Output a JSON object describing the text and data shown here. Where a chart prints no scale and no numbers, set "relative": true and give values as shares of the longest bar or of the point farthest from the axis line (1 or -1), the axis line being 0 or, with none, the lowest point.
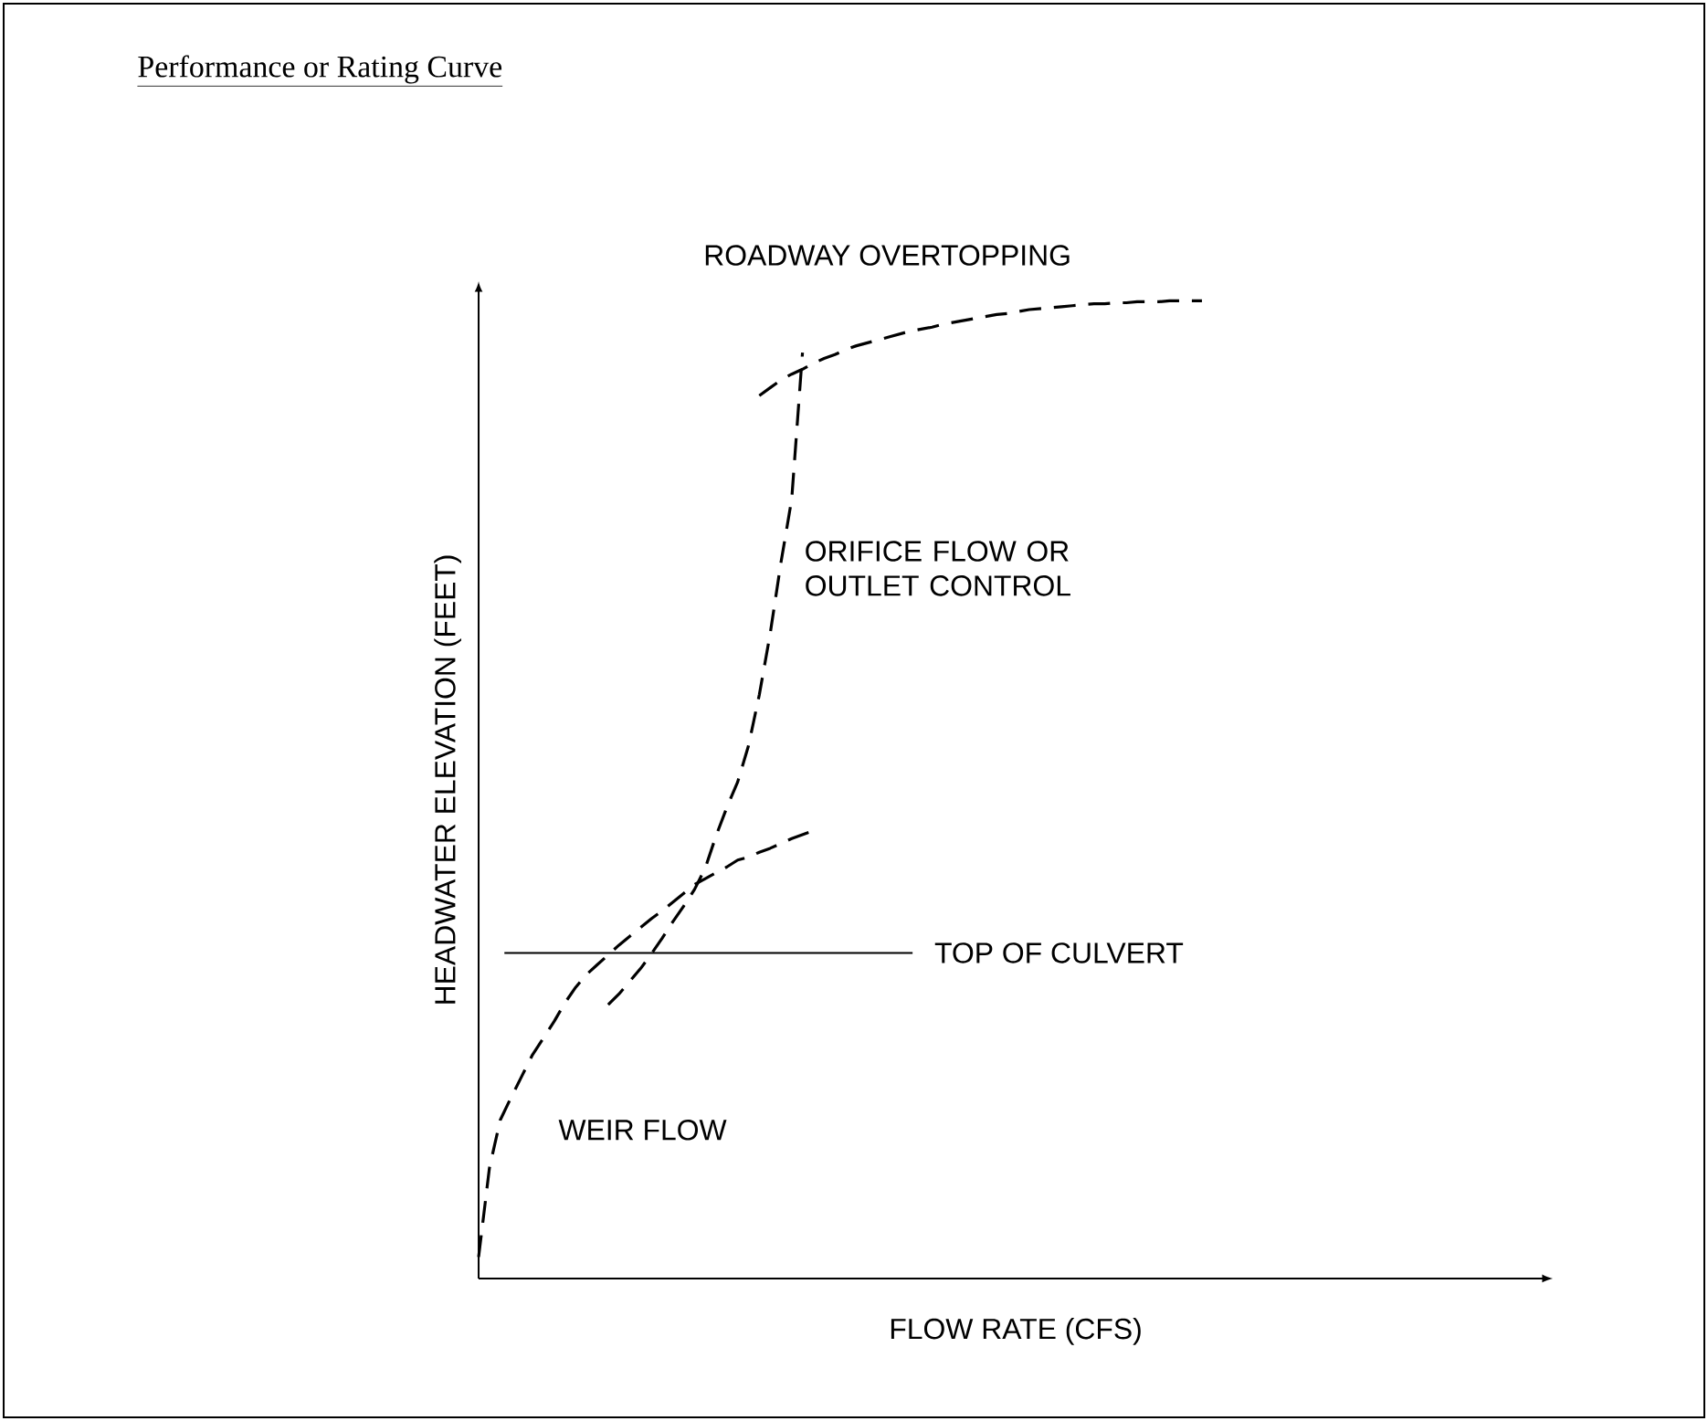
{
  "chart_data": {
    "type": "line",
    "title": "Performance or Rating Curve",
    "xlabel": "FLOW RATE (CFS)",
    "ylabel": "HEADWATER ELEVATION (FEET)",
    "relative": true,
    "line_style": "dashed",
    "marker": "none",
    "categories": [
      null,
      null,
      null,
      null,
      null,
      null,
      null,
      null,
      null,
      null,
      null,
      null,
      null,
      null,
      null,
      null,
      null,
      null,
      null,
      null,
      null,
      null,
      null,
      null,
      null,
      null,
      null,
      null,
      null,
      null,
      null,
      null,
      null,
      null,
      null,
      null,
      null,
      null,
      null,
      null,
      null,
      null,
      null,
      null,
      null,
      null,
      null,
      null,
      null,
      null,
      null,
      null,
      null,
      null,
      null,
      null,
      null,
      null,
      null,
      null,
      null,
      null,
      null,
      null,
      null,
      null,
      null,
      null
    ],
    "series": [
      {
        "name": "ROADWAY OVERTOPPING",
        "color": "#000000",
        "values": [
          null,
          null,
          null,
          null,
          null,
          null,
          null,
          null,
          null,
          null,
          null,
          null,
          null,
          null,
          null,
          null,
          null,
          null,
          null,
          null,
          null,
          null,
          null,
          null,
          null,
          null,
          0.903,
          0.911,
          0.919,
          0.925,
          0.93,
          0.936,
          0.941,
          0.945,
          0.95,
          0.954,
          0.957,
          0.96,
          0.963,
          0.966,
          0.969,
          0.971,
          0.973,
          0.976,
          0.978,
          0.98,
          0.982,
          0.984,
          0.986,
          0.987,
          0.989,
          0.991,
          0.992,
          0.993,
          0.994,
          0.995,
          0.996,
          0.997,
          0.997,
          0.998,
          0.998,
          0.999,
          0.999,
          0.999,
          1.0,
          1.0,
          1.0,
          1.0
        ]
      },
      {
        "name": "ORIFICE FLOW OR OUTLET CONTROL",
        "color": "#000000",
        "values": [
          null,
          null,
          null,
          null,
          null,
          null,
          null,
          null,
          null,
          null,
          null,
          null,
          0.28,
          0.291,
          0.304,
          0.317,
          0.332,
          0.348,
          0.365,
          0.381,
          0.398,
          0.42,
          0.453,
          0.482,
          0.508,
          0.545,
          0.597,
          0.659,
          0.732,
          0.797,
          0.947,
          null,
          null,
          null,
          null,
          null,
          null,
          null,
          null,
          null,
          null,
          null,
          null,
          null,
          null,
          null,
          null,
          null,
          null,
          null,
          null,
          null,
          null,
          null,
          null,
          null,
          null,
          null,
          null,
          null,
          null,
          null,
          null,
          null,
          null,
          null,
          null,
          null
        ]
      },
      {
        "name": "WEIR FLOW",
        "color": "#000000",
        "values": [
          0.022,
          0.113,
          0.162,
          0.185,
          0.207,
          0.229,
          0.246,
          0.263,
          0.282,
          0.298,
          0.311,
          0.321,
          0.331,
          0.341,
          0.35,
          0.359,
          0.368,
          0.376,
          0.385,
          0.394,
          0.403,
          0.409,
          0.415,
          0.421,
          0.428,
          0.431,
          0.436,
          0.44,
          0.445,
          0.45,
          0.454,
          0.458,
          null,
          null,
          null,
          null,
          null,
          null,
          null,
          null,
          null,
          null,
          null,
          null,
          null,
          null,
          null,
          null,
          null,
          null,
          null,
          null,
          null,
          null,
          null,
          null,
          null,
          null,
          null,
          null,
          null,
          null,
          null,
          null,
          null,
          null,
          null,
          null
        ]
      }
    ],
    "ref_lines": [
      {
        "axis": "y",
        "value": 0.333,
        "label": "TOP OF CULVERT",
        "color": "#000000",
        "line_style": "solid"
      }
    ]
  }
}
